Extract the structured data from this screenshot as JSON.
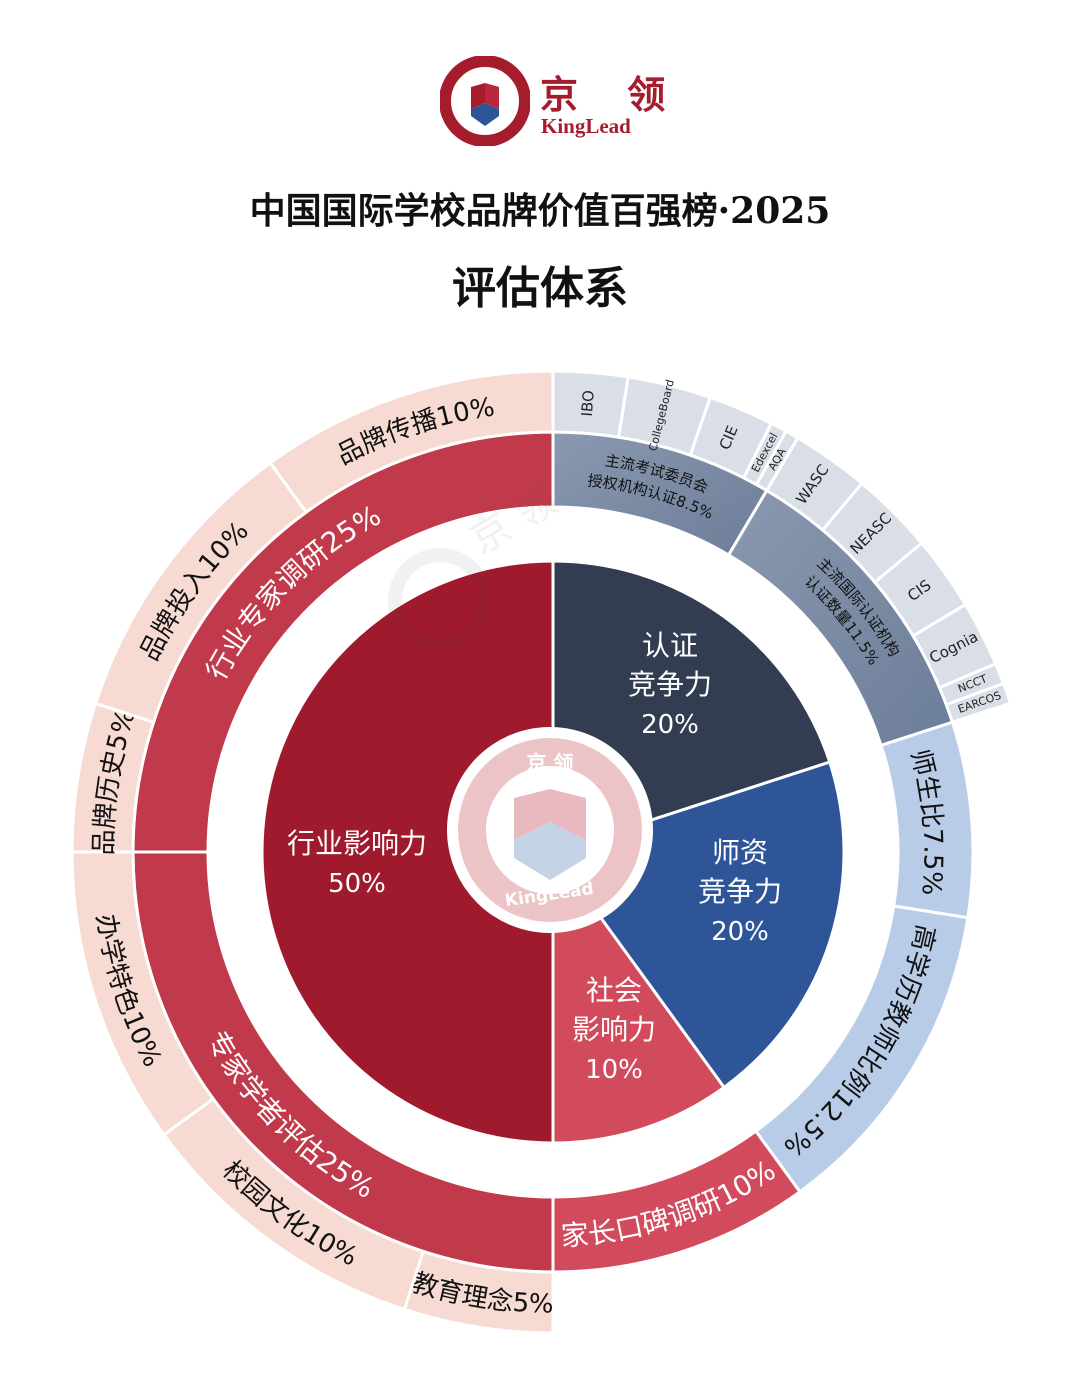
{
  "header": {
    "logo_cn": "京 领",
    "logo_en": "KingLead",
    "title": "中国国际学校品牌价值百强榜·2025",
    "subtitle": "评估体系"
  },
  "colors": {
    "brand_red": "#a51d2d",
    "industry": "#9e1a2c",
    "cert": "#323d52",
    "faculty": "#2e5597",
    "social": "#d24b5d",
    "mid_red": "#c13a4b",
    "outer_pink": "#f7dbd3",
    "cert_band": "#7d8ca4",
    "cert_outer": "#d9dee7",
    "faculty_band": "#b9cce7"
  },
  "chart_data": {
    "type": "sunburst",
    "title": "评估体系",
    "center_logo": {
      "cn": "京 领",
      "en": "KingLead"
    },
    "children": [
      {
        "name": "认证竞争力",
        "value": 20,
        "label": "20%",
        "color": "#323d52",
        "children": [
          {
            "name": "主流考试委员会授权机构认证",
            "value": 8.5,
            "label_lines": [
              "主流考试委员会",
              "授权机构认证8.5%"
            ],
            "color": "#7d8ca4",
            "children": [
              {
                "name": "IBO",
                "value": 2.5
              },
              {
                "name": "CollegeBoard",
                "value": 2.8
              },
              {
                "name": "CIE",
                "value": 2.2
              },
              {
                "name": "Edexcel",
                "value": 0.55
              },
              {
                "name": "AQA",
                "value": 0.45
              }
            ]
          },
          {
            "name": "主流国际认证机构认证数量",
            "value": 11.5,
            "label_lines": [
              "主流国际认证机构",
              "认证数量11.5%"
            ],
            "color": "#7d8ca4",
            "children": [
              {
                "name": "WASC",
                "value": 2.6
              },
              {
                "name": "NEASC",
                "value": 2.8
              },
              {
                "name": "CIS",
                "value": 2.5
              },
              {
                "name": "Cognia",
                "value": 2.2
              },
              {
                "name": "NCCT",
                "value": 0.7
              },
              {
                "name": "EARCOS",
                "value": 0.7
              }
            ]
          }
        ]
      },
      {
        "name": "师资竞争力",
        "value": 20,
        "label": "20%",
        "color": "#2e5597",
        "children": [
          {
            "name": "师生比",
            "value": 7.5,
            "label": "师生比7.5%",
            "color": "#b9cce7"
          },
          {
            "name": "高学历教师比例",
            "value": 12.5,
            "label": "高学历教师比例12.5%",
            "color": "#b9cce7"
          }
        ]
      },
      {
        "name": "社会影响力",
        "value": 10,
        "label": "10%",
        "color": "#d24b5d",
        "children": [
          {
            "name": "家长口碑调研",
            "value": 10,
            "label": "家长口碑调研10%",
            "color": "#d24b5d"
          }
        ]
      },
      {
        "name": "行业影响力",
        "value": 50,
        "label": "50%",
        "color": "#9e1a2c",
        "children": [
          {
            "name": "专家学者评估",
            "value": 25,
            "label": "专家学者评估25%",
            "color": "#c13a4b",
            "children": [
              {
                "name": "教育理念",
                "value": 5,
                "label": "教育理念5%"
              },
              {
                "name": "校园文化",
                "value": 10,
                "label": "校园文化10%"
              },
              {
                "name": "办学特色",
                "value": 10,
                "label": "办学特色10%"
              }
            ]
          },
          {
            "name": "行业专家调研",
            "value": 25,
            "label": "行业专家调研25%",
            "color": "#c13a4b",
            "children": [
              {
                "name": "品牌历史",
                "value": 5,
                "label": "品牌历史5%"
              },
              {
                "name": "品牌投入",
                "value": 10,
                "label": "品牌投入10%"
              },
              {
                "name": "品牌传播",
                "value": 10,
                "label": "品牌传播10%"
              }
            ]
          }
        ]
      }
    ]
  }
}
